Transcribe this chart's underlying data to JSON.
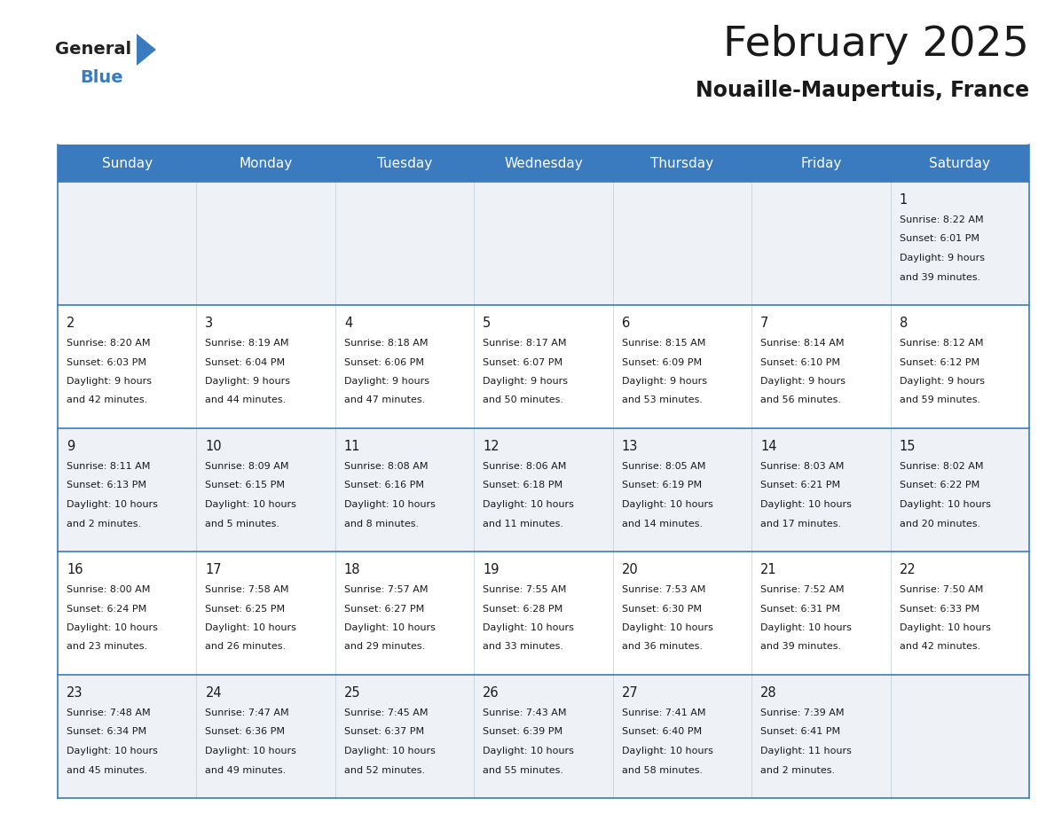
{
  "title": "February 2025",
  "subtitle": "Nouaille-Maupertuis, France",
  "header_bg": "#3a7bbf",
  "header_text_color": "#ffffff",
  "cell_bg_odd": "#eef2f7",
  "cell_bg_even": "#ffffff",
  "border_color": "#3a7bbf",
  "text_color": "#1a1a1a",
  "days_of_week": [
    "Sunday",
    "Monday",
    "Tuesday",
    "Wednesday",
    "Thursday",
    "Friday",
    "Saturday"
  ],
  "calendar_data": [
    [
      null,
      null,
      null,
      null,
      null,
      null,
      {
        "day": 1,
        "sunrise": "8:22 AM",
        "sunset": "6:01 PM",
        "daylight1": "9 hours",
        "daylight2": "and 39 minutes."
      }
    ],
    [
      {
        "day": 2,
        "sunrise": "8:20 AM",
        "sunset": "6:03 PM",
        "daylight1": "9 hours",
        "daylight2": "and 42 minutes."
      },
      {
        "day": 3,
        "sunrise": "8:19 AM",
        "sunset": "6:04 PM",
        "daylight1": "9 hours",
        "daylight2": "and 44 minutes."
      },
      {
        "day": 4,
        "sunrise": "8:18 AM",
        "sunset": "6:06 PM",
        "daylight1": "9 hours",
        "daylight2": "and 47 minutes."
      },
      {
        "day": 5,
        "sunrise": "8:17 AM",
        "sunset": "6:07 PM",
        "daylight1": "9 hours",
        "daylight2": "and 50 minutes."
      },
      {
        "day": 6,
        "sunrise": "8:15 AM",
        "sunset": "6:09 PM",
        "daylight1": "9 hours",
        "daylight2": "and 53 minutes."
      },
      {
        "day": 7,
        "sunrise": "8:14 AM",
        "sunset": "6:10 PM",
        "daylight1": "9 hours",
        "daylight2": "and 56 minutes."
      },
      {
        "day": 8,
        "sunrise": "8:12 AM",
        "sunset": "6:12 PM",
        "daylight1": "9 hours",
        "daylight2": "and 59 minutes."
      }
    ],
    [
      {
        "day": 9,
        "sunrise": "8:11 AM",
        "sunset": "6:13 PM",
        "daylight1": "10 hours",
        "daylight2": "and 2 minutes."
      },
      {
        "day": 10,
        "sunrise": "8:09 AM",
        "sunset": "6:15 PM",
        "daylight1": "10 hours",
        "daylight2": "and 5 minutes."
      },
      {
        "day": 11,
        "sunrise": "8:08 AM",
        "sunset": "6:16 PM",
        "daylight1": "10 hours",
        "daylight2": "and 8 minutes."
      },
      {
        "day": 12,
        "sunrise": "8:06 AM",
        "sunset": "6:18 PM",
        "daylight1": "10 hours",
        "daylight2": "and 11 minutes."
      },
      {
        "day": 13,
        "sunrise": "8:05 AM",
        "sunset": "6:19 PM",
        "daylight1": "10 hours",
        "daylight2": "and 14 minutes."
      },
      {
        "day": 14,
        "sunrise": "8:03 AM",
        "sunset": "6:21 PM",
        "daylight1": "10 hours",
        "daylight2": "and 17 minutes."
      },
      {
        "day": 15,
        "sunrise": "8:02 AM",
        "sunset": "6:22 PM",
        "daylight1": "10 hours",
        "daylight2": "and 20 minutes."
      }
    ],
    [
      {
        "day": 16,
        "sunrise": "8:00 AM",
        "sunset": "6:24 PM",
        "daylight1": "10 hours",
        "daylight2": "and 23 minutes."
      },
      {
        "day": 17,
        "sunrise": "7:58 AM",
        "sunset": "6:25 PM",
        "daylight1": "10 hours",
        "daylight2": "and 26 minutes."
      },
      {
        "day": 18,
        "sunrise": "7:57 AM",
        "sunset": "6:27 PM",
        "daylight1": "10 hours",
        "daylight2": "and 29 minutes."
      },
      {
        "day": 19,
        "sunrise": "7:55 AM",
        "sunset": "6:28 PM",
        "daylight1": "10 hours",
        "daylight2": "and 33 minutes."
      },
      {
        "day": 20,
        "sunrise": "7:53 AM",
        "sunset": "6:30 PM",
        "daylight1": "10 hours",
        "daylight2": "and 36 minutes."
      },
      {
        "day": 21,
        "sunrise": "7:52 AM",
        "sunset": "6:31 PM",
        "daylight1": "10 hours",
        "daylight2": "and 39 minutes."
      },
      {
        "day": 22,
        "sunrise": "7:50 AM",
        "sunset": "6:33 PM",
        "daylight1": "10 hours",
        "daylight2": "and 42 minutes."
      }
    ],
    [
      {
        "day": 23,
        "sunrise": "7:48 AM",
        "sunset": "6:34 PM",
        "daylight1": "10 hours",
        "daylight2": "and 45 minutes."
      },
      {
        "day": 24,
        "sunrise": "7:47 AM",
        "sunset": "6:36 PM",
        "daylight1": "10 hours",
        "daylight2": "and 49 minutes."
      },
      {
        "day": 25,
        "sunrise": "7:45 AM",
        "sunset": "6:37 PM",
        "daylight1": "10 hours",
        "daylight2": "and 52 minutes."
      },
      {
        "day": 26,
        "sunrise": "7:43 AM",
        "sunset": "6:39 PM",
        "daylight1": "10 hours",
        "daylight2": "and 55 minutes."
      },
      {
        "day": 27,
        "sunrise": "7:41 AM",
        "sunset": "6:40 PM",
        "daylight1": "10 hours",
        "daylight2": "and 58 minutes."
      },
      {
        "day": 28,
        "sunrise": "7:39 AM",
        "sunset": "6:41 PM",
        "daylight1": "11 hours",
        "daylight2": "and 2 minutes."
      },
      null
    ]
  ]
}
